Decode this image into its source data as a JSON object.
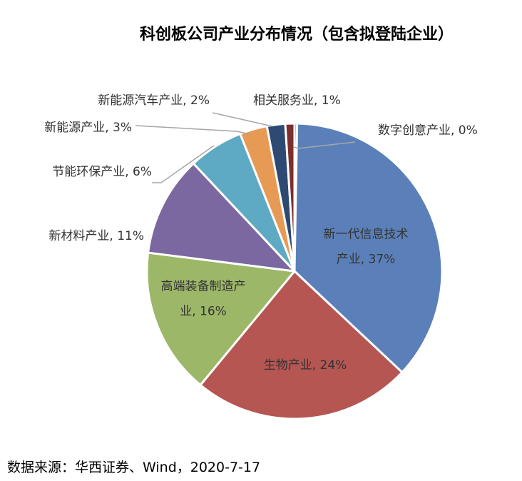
{
  "chart_data": {
    "type": "pie",
    "title": "科创板公司产业分布情况（包含拟登陆企业）",
    "slices": [
      {
        "name": "新一代信息技术产业",
        "value": 37,
        "label_lines": [
          "新一代信息技术",
          "产业, 37%"
        ],
        "color": "#5b80b9"
      },
      {
        "name": "生物产业",
        "value": 24,
        "label_lines": [
          "生物产业, 24%"
        ],
        "color": "#b55653"
      },
      {
        "name": "高端装备制造产业",
        "value": 16,
        "label_lines": [
          "高端装备制造产",
          "业, 16%"
        ],
        "color": "#9db769"
      },
      {
        "name": "新材料产业",
        "value": 11,
        "label_lines": [
          "新材料产业, 11%"
        ],
        "color": "#7c68a1"
      },
      {
        "name": "节能环保产业",
        "value": 6,
        "label_lines": [
          "节能环保产业, 6%"
        ],
        "color": "#5ea9c3"
      },
      {
        "name": "新能源产业",
        "value": 3,
        "label_lines": [
          "新能源产业, 3%"
        ],
        "color": "#e79a53"
      },
      {
        "name": "新能源汽车产业",
        "value": 2,
        "label_lines": [
          "新能源汽车产业, 2%"
        ],
        "color": "#2e4a73"
      },
      {
        "name": "相关服务业",
        "value": 1,
        "label_lines": [
          "相关服务业, 1%"
        ],
        "color": "#7c2f2c"
      },
      {
        "name": "数字创意产业",
        "value": 0,
        "label_lines": [
          "数字创意产业, 0%"
        ],
        "color": "#7f7f7f"
      }
    ]
  },
  "source": "数据来源：华西证券、Wind，2020-7-17"
}
